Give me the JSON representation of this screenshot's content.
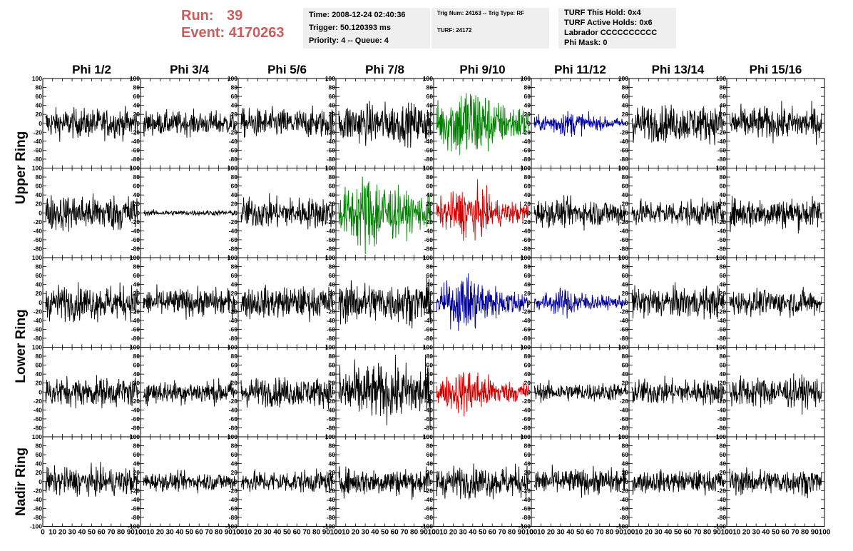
{
  "header": {
    "run_label": "Run:",
    "run_value": "39",
    "event_label": "Event:",
    "event_value": "4170263",
    "run_color": "#cd5c5c"
  },
  "info_boxes": {
    "time": "Time: 2008-12-24 02:40:36",
    "trigger": "Trigger: 50.120393 ms",
    "priority": "Priority: 4 -- Queue: 4",
    "trig_num": "Trig Num: 24163 -- Trig Type: RF",
    "turf": "TURF: 24172",
    "turf_hold": "TURF This Hold: 0x4",
    "turf_active": "TURF Active Holds: 0x6",
    "labrador": "Labrador CCCCCCCCCC",
    "phi_mask": "Phi Mask: 0"
  },
  "columns": [
    "Phi 1/2",
    "Phi 3/4",
    "Phi 5/6",
    "Phi 7/8",
    "Phi 9/10",
    "Phi 11/12",
    "Phi 13/14",
    "Phi 15/16"
  ],
  "ring_labels": [
    "Upper Ring",
    "Lower Ring",
    "Nadir Ring"
  ],
  "y_ticks": [
    "100",
    "80",
    "60",
    "40",
    "20",
    "0",
    "-20",
    "-40",
    "-60",
    "-80",
    "-100"
  ],
  "x_ticks": [
    "0",
    "10",
    "20",
    "30",
    "40",
    "50",
    "60",
    "70",
    "80",
    "90",
    "100"
  ],
  "panel_axes": {
    "xlim": [
      0,
      100
    ],
    "ylim": [
      -100,
      100
    ]
  },
  "colors": {
    "black": "#000000",
    "green": "#008000",
    "red": "#cc0000",
    "blue": "#000099"
  },
  "panels": [
    [
      {
        "c": "black",
        "a": 16
      },
      {
        "c": "black",
        "a": 13
      },
      {
        "c": "black",
        "a": 16
      },
      {
        "c": "black",
        "a": 22
      },
      {
        "c": "green",
        "a": 38
      },
      {
        "c": "blue",
        "a": 12
      },
      {
        "c": "black",
        "a": 20
      },
      {
        "c": "black",
        "a": 18
      }
    ],
    [
      {
        "c": "black",
        "a": 20
      },
      {
        "c": "black",
        "a": 3
      },
      {
        "c": "black",
        "a": 17
      },
      {
        "c": "green",
        "a": 38
      },
      {
        "c": "red",
        "a": 24
      },
      {
        "c": "black",
        "a": 15
      },
      {
        "c": "black",
        "a": 14
      },
      {
        "c": "black",
        "a": 17
      }
    ],
    [
      {
        "c": "black",
        "a": 19
      },
      {
        "c": "black",
        "a": 15
      },
      {
        "c": "black",
        "a": 17
      },
      {
        "c": "black",
        "a": 22
      },
      {
        "c": "blue",
        "a": 26
      },
      {
        "c": "blue",
        "a": 13
      },
      {
        "c": "black",
        "a": 17
      },
      {
        "c": "black",
        "a": 14
      }
    ],
    [
      {
        "c": "black",
        "a": 16
      },
      {
        "c": "black",
        "a": 13
      },
      {
        "c": "black",
        "a": 16
      },
      {
        "c": "black",
        "a": 30
      },
      {
        "c": "red",
        "a": 22
      },
      {
        "c": "black",
        "a": 10
      },
      {
        "c": "black",
        "a": 14
      },
      {
        "c": "black",
        "a": 17
      }
    ],
    [
      {
        "c": "black",
        "a": 15
      },
      {
        "c": "black",
        "a": 10
      },
      {
        "c": "black",
        "a": 12
      },
      {
        "c": "black",
        "a": 15
      },
      {
        "c": "black",
        "a": 17
      },
      {
        "c": "black",
        "a": 14
      },
      {
        "c": "black",
        "a": 12
      },
      {
        "c": "black",
        "a": 14
      }
    ]
  ]
}
